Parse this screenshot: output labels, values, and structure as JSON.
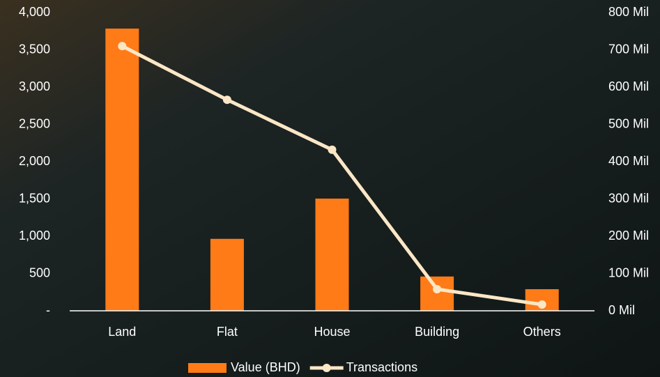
{
  "chart_data": {
    "type": "bar",
    "categories": [
      "Land",
      "Flat",
      "House",
      "Building",
      "Others"
    ],
    "series": [
      {
        "name": "Value (BHD)",
        "type": "bar",
        "color": "#ff7b17",
        "axis": "y2",
        "values": [
          757000000,
          193000000,
          301000000,
          92000000,
          58000000
        ]
      },
      {
        "name": "Transactions",
        "type": "line",
        "color": "#fbe7c6",
        "axis": "y",
        "values": [
          3550,
          2830,
          2160,
          290,
          84
        ]
      }
    ],
    "ylim": [
      0,
      4000
    ],
    "yticks": [
      {
        "value": 0,
        "label": "-"
      },
      500,
      {
        "value": 1000,
        "label": "1,000"
      },
      {
        "value": 1500,
        "label": "1,500"
      },
      {
        "value": 2000,
        "label": "2,000"
      },
      {
        "value": 2500,
        "label": "2,500"
      },
      {
        "value": 3000,
        "label": "3,000"
      },
      {
        "value": 3500,
        "label": "3,500"
      },
      {
        "value": 4000,
        "label": "4,000"
      }
    ],
    "y2lim": [
      0,
      800000000
    ],
    "y2ticks": [
      {
        "value": 0,
        "label": "0 Mil"
      },
      {
        "value": 100000000,
        "label": "100 Mil"
      },
      {
        "value": 200000000,
        "label": "200 Mil"
      },
      {
        "value": 300000000,
        "label": "300 Mil"
      },
      {
        "value": 400000000,
        "label": "400 Mil"
      },
      {
        "value": 500000000,
        "label": "500 Mil"
      },
      {
        "value": 600000000,
        "label": "600 Mil"
      },
      {
        "value": 700000000,
        "label": "700 Mil"
      },
      {
        "value": 800000000,
        "label": "800 Mil"
      }
    ],
    "legend": "bottom"
  }
}
